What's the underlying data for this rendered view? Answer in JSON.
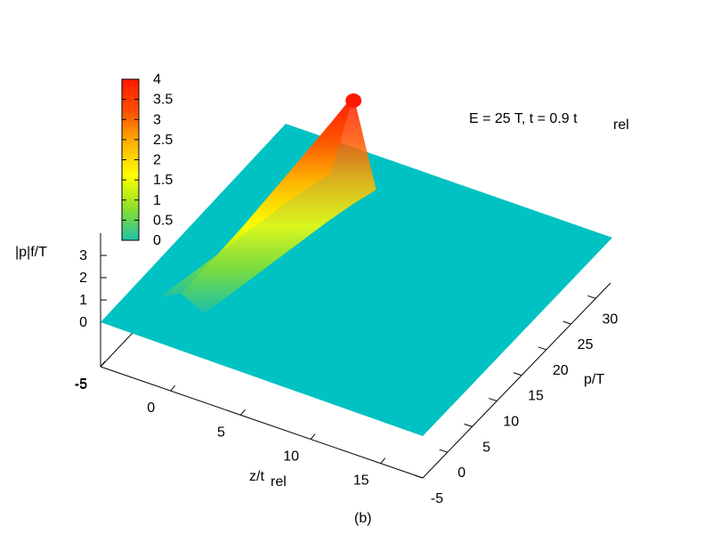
{
  "chart_data": {
    "type": "surface3d",
    "annotation": {
      "main": "E = 25 T, t = 0.9 t",
      "sub": "rel"
    },
    "panel_label": "(b)",
    "z_axis": {
      "label": "|p|f/T",
      "range": [
        0,
        4
      ],
      "ticks": [
        "0",
        "1",
        "2",
        "3"
      ]
    },
    "x_axis": {
      "label_main": "z/t",
      "label_sub": "rel",
      "range": [
        -5,
        18
      ],
      "ticks": [
        "-5",
        "0",
        "5",
        "10",
        "15"
      ]
    },
    "y_axis": {
      "label": "p/T",
      "range": [
        -5,
        33
      ],
      "ticks": [
        "-5",
        "0",
        "5",
        "10",
        "15",
        "20",
        "25",
        "30"
      ]
    },
    "colorbar": {
      "ticks": [
        "0",
        "0.5",
        "1",
        "1.5",
        "2",
        "2.5",
        "3",
        "3.5",
        "4"
      ],
      "range": [
        0,
        4
      ],
      "colors": [
        "#1fc0a8",
        "#8ce028",
        "#ffff00",
        "#ffb400",
        "#ff5000",
        "#ff1800"
      ]
    },
    "plane_color": "#00c2c2",
    "ridge": {
      "description_points": [
        {
          "z": -1.5,
          "p": 1.5,
          "value": 0.55
        },
        {
          "z": -1.0,
          "p": 6,
          "value": 1.0
        },
        {
          "z": -0.5,
          "p": 11,
          "value": 1.5
        },
        {
          "z": 0.0,
          "p": 16,
          "value": 2.1
        },
        {
          "z": 0.5,
          "p": 21,
          "value": 2.7
        },
        {
          "z": 1.0,
          "p": 25,
          "value": 3.3
        },
        {
          "z": 1.5,
          "p": 28,
          "value": 3.9
        }
      ]
    }
  }
}
